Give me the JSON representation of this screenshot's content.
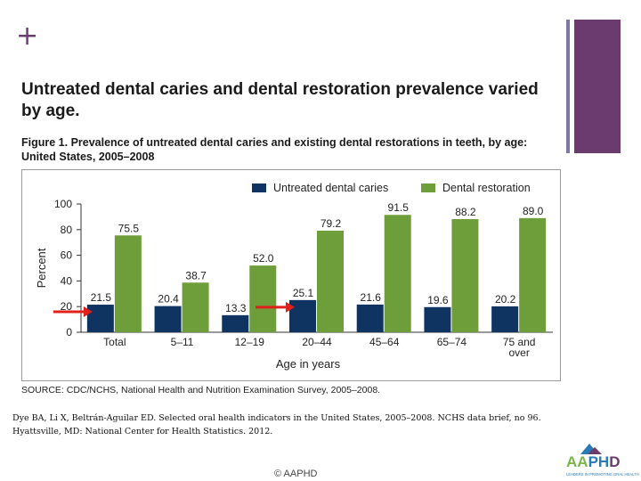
{
  "slide": {
    "plus": "+",
    "headline": "Untreated dental caries and dental restoration prevalence varied by age.",
    "figure_caption": "Figure 1. Prevalence of untreated dental caries and existing dental restorations in teeth, by age: United States, 2005–2008",
    "source": "SOURCE: CDC/NCHS, National Health and Nutrition Examination Survey, 2005–2008.",
    "citation": "Dye BA, Li X, Beltrán-Aguilar ED. Selected oral health indicators in the United States, 2005–2008. NCHS data brief, no 96. Hyattsville, MD: National Center for Health Statistics. 2012.",
    "copyright": "© AAPHD",
    "logo": {
      "name": "AAPHD",
      "tagline": "LEADERS IN PROMOTING ORAL HEALTH",
      "colors": {
        "green": "#7ab648",
        "blue": "#2a7ab8",
        "purple": "#6b3a6e"
      }
    }
  },
  "chart_data": {
    "type": "bar",
    "categories": [
      "Total",
      "5–11",
      "12–19",
      "20–44",
      "45–64",
      "65–74",
      "75 and over"
    ],
    "series": [
      {
        "name": "Untreated dental caries",
        "color": "#0f3462",
        "values": [
          21.5,
          20.4,
          13.3,
          25.1,
          21.6,
          19.6,
          20.2
        ]
      },
      {
        "name": "Dental restoration",
        "color": "#6e9e3a",
        "values": [
          75.5,
          38.7,
          52.0,
          79.2,
          91.5,
          88.2,
          89.0
        ]
      }
    ],
    "value_labels": [
      [
        "21.5",
        "20.4",
        "13.3",
        "25.1",
        "21.6",
        "19.6",
        "20.2"
      ],
      [
        "75.5",
        "38.7",
        "52.0",
        "79.2",
        "91.5",
        "88.2",
        "89.0"
      ]
    ],
    "xlabel": "Age in years",
    "ylabel": "Percent",
    "ylim": [
      0,
      100
    ],
    "yticks": [
      "0",
      "20",
      "40",
      "60",
      "80",
      "100"
    ],
    "legend_position": "top-right",
    "annotations": [
      {
        "type": "arrow",
        "color": "#e0201b",
        "category": "Total"
      },
      {
        "type": "arrow",
        "color": "#e0201b",
        "category": "20–44"
      }
    ]
  }
}
